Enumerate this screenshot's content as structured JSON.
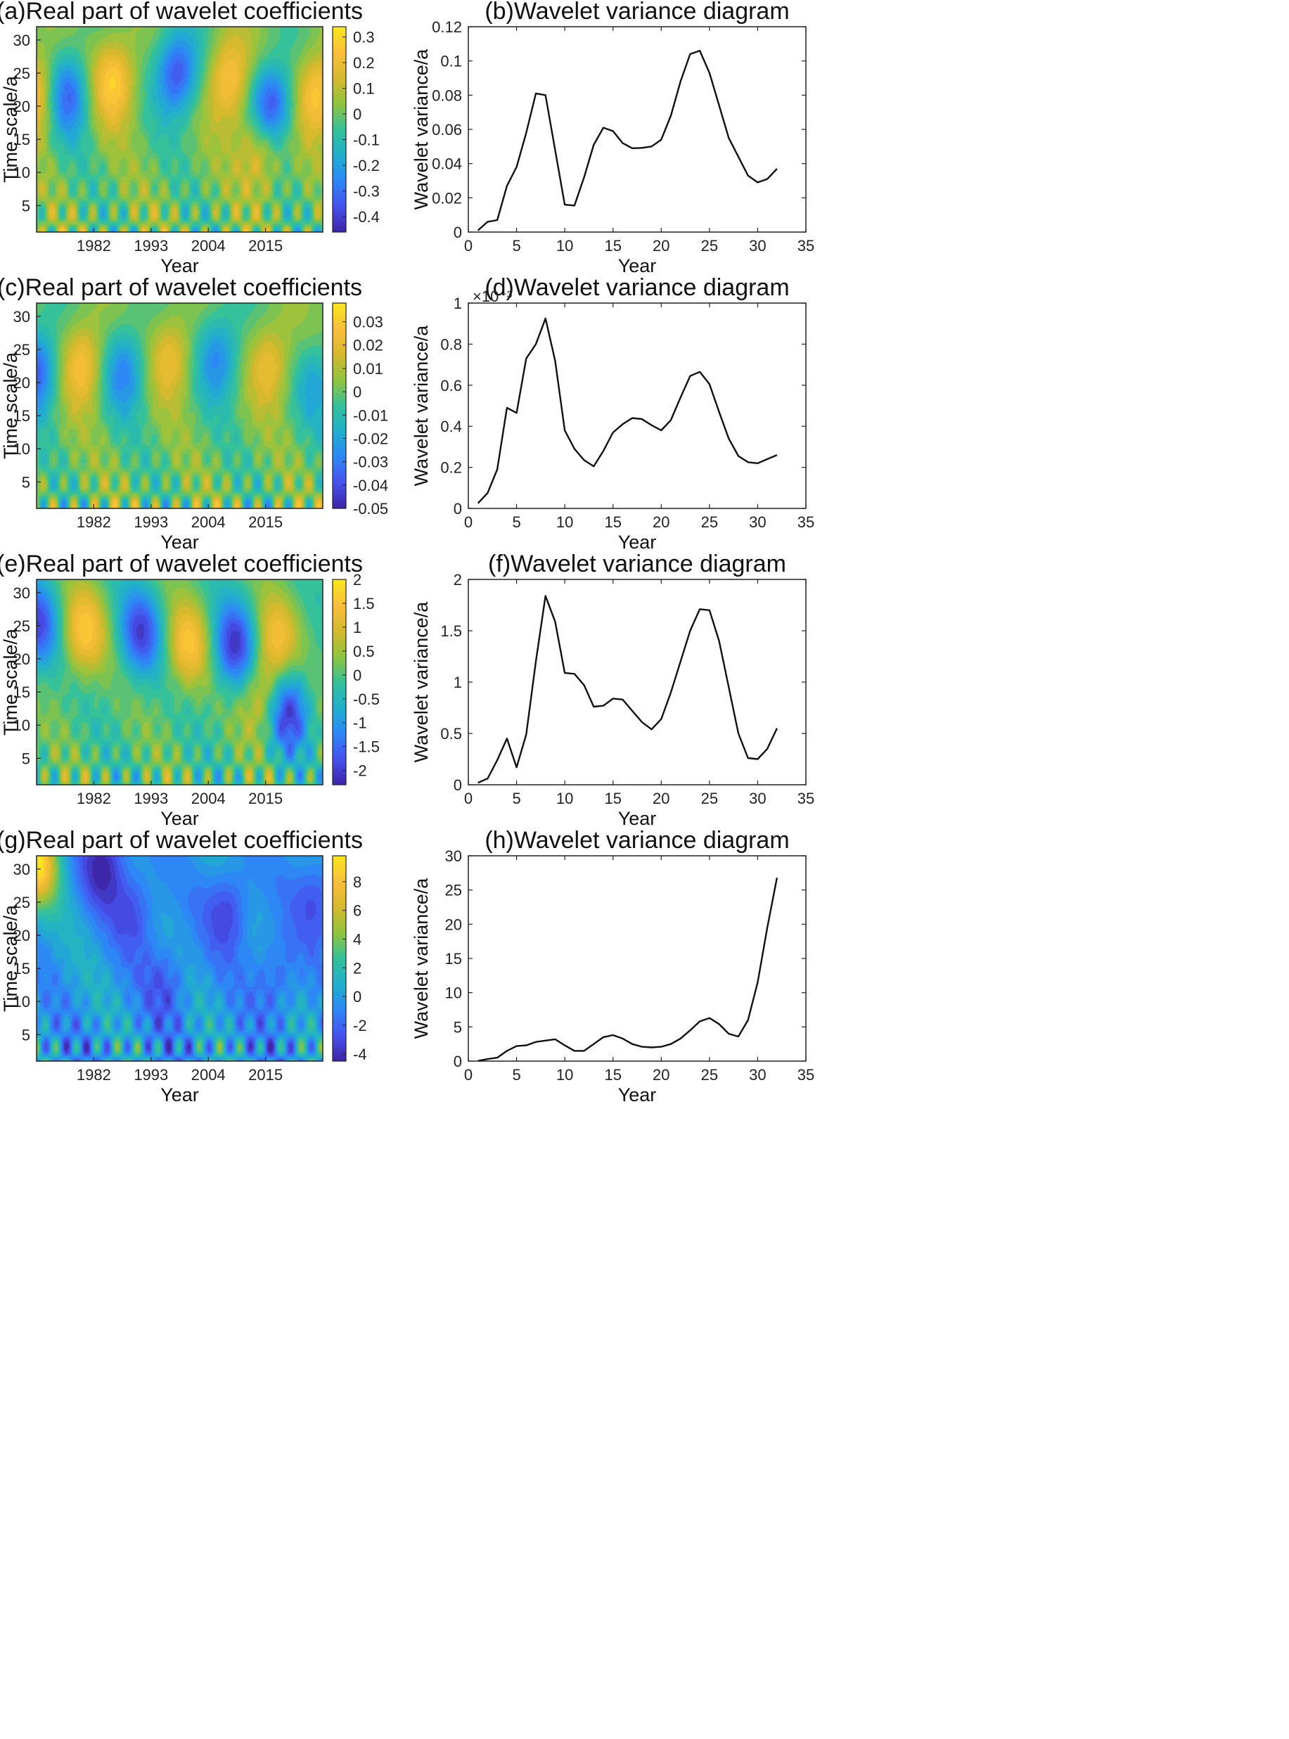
{
  "figure": {
    "heatmap_colors": [
      "#3e26a8",
      "#4653f0",
      "#2d88f6",
      "#20b0ce",
      "#35c199",
      "#8fc43f",
      "#d6b92d",
      "#fcbe3a",
      "#f9e620"
    ]
  },
  "chart_data": [
    {
      "panel": "a",
      "type": "heatmap",
      "title": "(a)Real part of wavelet coefficients",
      "xlabel": "Year",
      "ylabel": "Time scale/a",
      "x_ticks": [
        "1982",
        "1993",
        "2004",
        "2015"
      ],
      "y_ticks": [
        "5",
        "10",
        "15",
        "20",
        "25",
        "30"
      ],
      "colorbar_ticks": [
        "0.3",
        "0.2",
        "0.1",
        "0",
        "-0.1",
        "-0.2",
        "-0.3",
        "-0.4"
      ],
      "xlim": [
        1971,
        2026
      ],
      "ylim": [
        1,
        32
      ],
      "crange": [
        -0.46,
        0.34
      ],
      "blobs": [
        {
          "x": 1971,
          "y": 22,
          "v": 0.3
        },
        {
          "x": 1977,
          "y": 22,
          "v": -0.35
        },
        {
          "x": 1986,
          "y": 24,
          "v": 0.3
        },
        {
          "x": 1998,
          "y": 25,
          "v": -0.4
        },
        {
          "x": 2008,
          "y": 24,
          "v": 0.3
        },
        {
          "x": 2016,
          "y": 20,
          "v": -0.45
        },
        {
          "x": 2014,
          "y": 14,
          "v": 0.25
        },
        {
          "x": 2025,
          "y": 22,
          "v": 0.3
        }
      ]
    },
    {
      "panel": "b",
      "type": "line",
      "title": "(b)Wavelet variance diagram",
      "xlabel": "Year",
      "ylabel": "Wavelet variance/a",
      "x_ticks": [
        "0",
        "5",
        "10",
        "15",
        "20",
        "25",
        "30",
        "35"
      ],
      "y_ticks": [
        "0",
        "0.02",
        "0.04",
        "0.06",
        "0.08",
        "0.1",
        "0.12"
      ],
      "xlim": [
        0,
        35
      ],
      "ylim": [
        0,
        0.12
      ],
      "exponent_label": "",
      "x": [
        1,
        2,
        3,
        4,
        5,
        6,
        7,
        8,
        9,
        10,
        11,
        12,
        13,
        14,
        15,
        16,
        17,
        18,
        19,
        20,
        21,
        22,
        23,
        24,
        25,
        26,
        27,
        28,
        29,
        30,
        31,
        32
      ],
      "values": [
        0.001,
        0.006,
        0.007,
        0.027,
        0.038,
        0.058,
        0.081,
        0.08,
        0.048,
        0.016,
        0.0155,
        0.032,
        0.051,
        0.061,
        0.059,
        0.052,
        0.049,
        0.0492,
        0.05,
        0.054,
        0.068,
        0.088,
        0.104,
        0.106,
        0.093,
        0.074,
        0.055,
        0.044,
        0.033,
        0.029,
        0.031,
        0.037
      ]
    },
    {
      "panel": "c",
      "type": "heatmap",
      "title": "(c)Real part of wavelet coefficients",
      "xlabel": "Year",
      "ylabel": "Time scale/a",
      "x_ticks": [
        "1982",
        "1993",
        "2004",
        "2015"
      ],
      "y_ticks": [
        "5",
        "10",
        "15",
        "20",
        "25",
        "30"
      ],
      "colorbar_ticks": [
        "0.03",
        "0.02",
        "0.01",
        "0",
        "-0.01",
        "-0.02",
        "-0.03",
        "-0.04",
        "-0.05"
      ],
      "xlim": [
        1971,
        2026
      ],
      "ylim": [
        1,
        32
      ],
      "crange": [
        -0.05,
        0.038
      ],
      "blobs": [
        {
          "x": 1971,
          "y": 22,
          "v": -0.04
        },
        {
          "x": 1980,
          "y": 23,
          "v": 0.03
        },
        {
          "x": 1988,
          "y": 22,
          "v": -0.03
        },
        {
          "x": 1997,
          "y": 24,
          "v": 0.025
        },
        {
          "x": 2006,
          "y": 24,
          "v": -0.03
        },
        {
          "x": 2016,
          "y": 23,
          "v": 0.025
        },
        {
          "x": 2025,
          "y": 20,
          "v": -0.02
        }
      ]
    },
    {
      "panel": "d",
      "type": "line",
      "title": "(d)Wavelet variance diagram",
      "xlabel": "Year",
      "ylabel": "Wavelet variance/a",
      "x_ticks": [
        "0",
        "5",
        "10",
        "15",
        "20",
        "25",
        "30",
        "35"
      ],
      "y_ticks": [
        "0",
        "0.2",
        "0.4",
        "0.6",
        "0.8",
        "1"
      ],
      "xlim": [
        0,
        35
      ],
      "ylim": [
        0,
        1
      ],
      "exponent_label": "×10⁻³",
      "x": [
        1,
        2,
        3,
        4,
        5,
        6,
        7,
        8,
        9,
        10,
        11,
        12,
        13,
        14,
        15,
        16,
        17,
        18,
        19,
        20,
        21,
        22,
        23,
        24,
        25,
        26,
        27,
        28,
        29,
        30,
        31,
        32
      ],
      "values": [
        0.025,
        0.075,
        0.19,
        0.49,
        0.465,
        0.73,
        0.8,
        0.925,
        0.72,
        0.38,
        0.29,
        0.235,
        0.205,
        0.28,
        0.37,
        0.41,
        0.44,
        0.435,
        0.405,
        0.38,
        0.43,
        0.54,
        0.645,
        0.665,
        0.605,
        0.47,
        0.34,
        0.255,
        0.225,
        0.22,
        0.24,
        0.26
      ]
    },
    {
      "panel": "e",
      "type": "heatmap",
      "title": "(e)Real part of wavelet coefficients",
      "xlabel": "Year",
      "ylabel": "Time scale/a",
      "x_ticks": [
        "1982",
        "1993",
        "2004",
        "2015"
      ],
      "y_ticks": [
        "5",
        "10",
        "15",
        "20",
        "25",
        "30"
      ],
      "colorbar_ticks": [
        "2",
        "1.5",
        "1",
        "0.5",
        "0",
        "-0.5",
        "-1",
        "-1.5",
        "-2"
      ],
      "xlim": [
        1971,
        2026
      ],
      "ylim": [
        1,
        32
      ],
      "crange": [
        -2.3,
        2
      ],
      "blobs": [
        {
          "x": 1971,
          "y": 25,
          "v": -1.8
        },
        {
          "x": 1980,
          "y": 24,
          "v": 1.5
        },
        {
          "x": 1991,
          "y": 24,
          "v": -1.8
        },
        {
          "x": 2000,
          "y": 22,
          "v": 1.4
        },
        {
          "x": 2009,
          "y": 22,
          "v": -2.0
        },
        {
          "x": 2017,
          "y": 23,
          "v": 1.2
        },
        {
          "x": 2019,
          "y": 12,
          "v": -2.2
        },
        {
          "x": 2015,
          "y": 14,
          "v": 1.3
        }
      ]
    },
    {
      "panel": "f",
      "type": "line",
      "title": "(f)Wavelet variance diagram",
      "xlabel": "Year",
      "ylabel": "Wavelet variance/a",
      "x_ticks": [
        "0",
        "5",
        "10",
        "15",
        "20",
        "25",
        "30",
        "35"
      ],
      "y_ticks": [
        "0",
        "0.5",
        "1",
        "1.5",
        "2"
      ],
      "xlim": [
        0,
        35
      ],
      "ylim": [
        0,
        2
      ],
      "exponent_label": "",
      "x": [
        1,
        2,
        3,
        4,
        5,
        6,
        7,
        8,
        9,
        10,
        11,
        12,
        13,
        14,
        15,
        16,
        17,
        18,
        19,
        20,
        21,
        22,
        23,
        24,
        25,
        26,
        27,
        28,
        29,
        30,
        31,
        32
      ],
      "values": [
        0.02,
        0.06,
        0.24,
        0.45,
        0.17,
        0.49,
        1.2,
        1.84,
        1.59,
        1.09,
        1.08,
        0.97,
        0.76,
        0.77,
        0.84,
        0.83,
        0.72,
        0.61,
        0.54,
        0.64,
        0.9,
        1.2,
        1.5,
        1.71,
        1.7,
        1.4,
        0.95,
        0.5,
        0.26,
        0.25,
        0.35,
        0.55
      ]
    },
    {
      "panel": "g",
      "type": "heatmap",
      "title": "(g)Real part of wavelet coefficients",
      "xlabel": "Year",
      "ylabel": "Time scale/a",
      "x_ticks": [
        "1982",
        "1993",
        "2004",
        "2015"
      ],
      "y_ticks": [
        "5",
        "10",
        "15",
        "20",
        "25",
        "30"
      ],
      "colorbar_ticks": [
        "8",
        "6",
        "4",
        "2",
        "0",
        "-2",
        "-4"
      ],
      "xlim": [
        1971,
        2026
      ],
      "ylim": [
        1,
        32
      ],
      "crange": [
        -4.5,
        9.8
      ],
      "blobs": [
        {
          "x": 1971,
          "y": 31,
          "v": 9
        },
        {
          "x": 1984,
          "y": 31,
          "v": -4.3
        },
        {
          "x": 1990,
          "y": 24,
          "v": -3
        },
        {
          "x": 2008,
          "y": 24,
          "v": -3.5
        },
        {
          "x": 2025,
          "y": 26,
          "v": -3
        },
        {
          "x": 2017,
          "y": 14,
          "v": -2.5
        },
        {
          "x": 1996,
          "y": 13,
          "v": -2.5
        }
      ]
    },
    {
      "panel": "h",
      "type": "line",
      "title": "(h)Wavelet variance diagram",
      "xlabel": "Year",
      "ylabel": "Wavelet variance/a",
      "x_ticks": [
        "0",
        "5",
        "10",
        "15",
        "20",
        "25",
        "30",
        "35"
      ],
      "y_ticks": [
        "0",
        "5",
        "10",
        "15",
        "20",
        "25",
        "30"
      ],
      "xlim": [
        0,
        35
      ],
      "ylim": [
        0,
        30
      ],
      "exponent_label": "",
      "x": [
        1,
        2,
        3,
        4,
        5,
        6,
        7,
        8,
        9,
        10,
        11,
        12,
        13,
        14,
        15,
        16,
        17,
        18,
        19,
        20,
        21,
        22,
        23,
        24,
        25,
        26,
        27,
        28,
        29,
        30,
        31,
        32
      ],
      "values": [
        0.05,
        0.3,
        0.5,
        1.5,
        2.2,
        2.3,
        2.8,
        3.0,
        3.2,
        2.3,
        1.5,
        1.5,
        2.5,
        3.5,
        3.8,
        3.3,
        2.5,
        2.1,
        2.0,
        2.1,
        2.5,
        3.3,
        4.5,
        5.8,
        6.3,
        5.4,
        4.0,
        3.6,
        6.0,
        11.5,
        19.5,
        26.8
      ]
    }
  ]
}
